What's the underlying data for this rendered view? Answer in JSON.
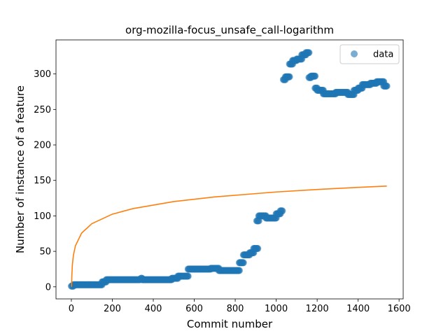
{
  "chart_data": {
    "type": "scatter",
    "title": "org-mozilla-focus_unsafe_call-logarithm",
    "xlabel": "Commit number",
    "ylabel": "Number of instance of a feature",
    "xlim": [
      -75,
      1620
    ],
    "ylim": [
      -17,
      348
    ],
    "xticks": [
      0,
      200,
      400,
      600,
      800,
      1000,
      1200,
      1400,
      1600
    ],
    "yticks": [
      0,
      50,
      100,
      150,
      200,
      250,
      300
    ],
    "grid": false,
    "legend": {
      "placement": "top-right",
      "entries": [
        "data"
      ]
    },
    "colors": {
      "data": "#1f77b4",
      "fit": "#ff7f0e"
    },
    "series": [
      {
        "name": "data",
        "kind": "scatter",
        "segments": [
          {
            "x": [
              0,
              10
            ],
            "y": [
              1,
              1
            ]
          },
          {
            "x": [
              10,
              150
            ],
            "y": [
              3,
              3
            ]
          },
          {
            "x": [
              150,
              170
            ],
            "y": [
              7,
              7
            ]
          },
          {
            "x": [
              170,
              335
            ],
            "y": [
              10,
              10
            ]
          },
          {
            "x": [
              340,
              345
            ],
            "y": [
              12,
              12
            ]
          },
          {
            "x": [
              345,
              490
            ],
            "y": [
              10,
              10
            ]
          },
          {
            "x": [
              490,
              520
            ],
            "y": [
              12,
              12
            ]
          },
          {
            "x": [
              520,
              570
            ],
            "y": [
              15,
              15
            ]
          },
          {
            "x": [
              570,
              680
            ],
            "y": [
              25,
              25
            ]
          },
          {
            "x": [
              680,
              720
            ],
            "y": [
              26,
              26
            ]
          },
          {
            "x": [
              720,
              820
            ],
            "y": [
              23,
              23
            ]
          },
          {
            "x": [
              820,
              840
            ],
            "y": [
              34,
              34
            ]
          },
          {
            "x": [
              840,
              870
            ],
            "y": [
              45,
              45
            ]
          },
          {
            "x": [
              870,
              890
            ],
            "y": [
              48,
              48
            ]
          },
          {
            "x": [
              890,
              910
            ],
            "y": [
              54,
              54
            ]
          },
          {
            "x": [
              905,
              915
            ],
            "y": [
              93,
              93
            ]
          },
          {
            "x": [
              915,
              950
            ],
            "y": [
              100,
              100
            ]
          },
          {
            "x": [
              950,
              1000
            ],
            "y": [
              97,
              97
            ]
          },
          {
            "x": [
              1000,
              1020
            ],
            "y": [
              103,
              103
            ]
          },
          {
            "x": [
              1020,
              1030
            ],
            "y": [
              107,
              107
            ]
          },
          {
            "x": [
              1035,
              1045
            ],
            "y": [
              292,
              292
            ]
          },
          {
            "x": [
              1045,
              1065
            ],
            "y": [
              296,
              296
            ]
          },
          {
            "x": [
              1065,
              1080
            ],
            "y": [
              314,
              314
            ]
          },
          {
            "x": [
              1080,
              1100
            ],
            "y": [
              319,
              319
            ]
          },
          {
            "x": [
              1100,
              1125
            ],
            "y": [
              321,
              321
            ]
          },
          {
            "x": [
              1125,
              1145
            ],
            "y": [
              327,
              327
            ]
          },
          {
            "x": [
              1145,
              1160
            ],
            "y": [
              330,
              330
            ]
          },
          {
            "x": [
              1160,
              1170
            ],
            "y": [
              295,
              295
            ]
          },
          {
            "x": [
              1170,
              1190
            ],
            "y": [
              297,
              297
            ]
          },
          {
            "x": [
              1190,
              1200
            ],
            "y": [
              280,
              280
            ]
          },
          {
            "x": [
              1200,
              1230
            ],
            "y": [
              277,
              277
            ]
          },
          {
            "x": [
              1230,
              1290
            ],
            "y": [
              272,
              272
            ]
          },
          {
            "x": [
              1290,
              1350
            ],
            "y": [
              274,
              274
            ]
          },
          {
            "x": [
              1350,
              1380
            ],
            "y": [
              271,
              271
            ]
          },
          {
            "x": [
              1380,
              1400
            ],
            "y": [
              277,
              277
            ]
          },
          {
            "x": [
              1400,
              1420
            ],
            "y": [
              280,
              280
            ]
          },
          {
            "x": [
              1420,
              1460
            ],
            "y": [
              285,
              285
            ]
          },
          {
            "x": [
              1460,
              1490
            ],
            "y": [
              287,
              287
            ]
          },
          {
            "x": [
              1490,
              1525
            ],
            "y": [
              289,
              289
            ]
          },
          {
            "x": [
              1525,
              1540
            ],
            "y": [
              283,
              283
            ]
          }
        ]
      },
      {
        "name": "",
        "kind": "line",
        "curve": "logarithm",
        "x": [
          1,
          2,
          5,
          10,
          20,
          50,
          100,
          200,
          300,
          500,
          700,
          1000,
          1200,
          1400,
          1540
        ],
        "y": [
          0,
          13.5,
          31.2,
          44.6,
          58.0,
          75.7,
          89.0,
          102.4,
          110.2,
          120.2,
          126.7,
          133.7,
          137.2,
          140.2,
          142.0
        ]
      }
    ]
  }
}
